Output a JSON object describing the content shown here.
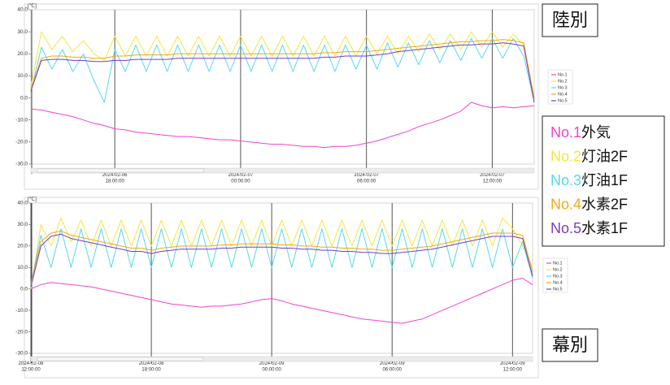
{
  "chart_data": [
    {
      "type": "line",
      "title": "陸別",
      "unit": "[℃]",
      "categories": [
        null,
        null,
        null,
        null,
        null,
        null,
        null,
        null,
        "2024-02-06 18:00:00",
        null,
        null,
        null,
        null,
        null,
        null,
        null,
        null,
        null,
        null,
        null,
        "2024-02-07 00:00:00",
        null,
        null,
        null,
        null,
        null,
        null,
        null,
        null,
        null,
        null,
        null,
        "2024-02-07 06:00:00",
        null,
        null,
        null,
        null,
        null,
        null,
        null,
        null,
        null,
        null,
        null,
        "2024-02-07 12:00:00",
        null,
        null,
        null,
        null
      ],
      "ylim": [
        -30,
        40
      ],
      "yticks": [
        {
          "value": 40,
          "label": "40.0"
        },
        {
          "value": 30,
          "label": "30.0"
        },
        {
          "value": 20,
          "label": "20.0"
        },
        {
          "value": 10,
          "label": "10.0"
        },
        {
          "value": 0,
          "label": "0.0"
        },
        {
          "value": -10,
          "label": "-10.0"
        },
        {
          "value": -20,
          "label": "-20.0"
        },
        {
          "value": -30,
          "label": "-30.0"
        }
      ],
      "series": [
        {
          "name": "No.1",
          "label": "外気",
          "color": "#ee44cc",
          "values": [
            -5,
            -5.5,
            -6.5,
            -7.5,
            -8.5,
            -10,
            -11.5,
            -12.5,
            -14,
            -14.5,
            -15.5,
            -16,
            -16.5,
            -17,
            -17.5,
            -17.5,
            -18,
            -18.5,
            -19,
            -19,
            -19.5,
            -20,
            -20.5,
            -21,
            -21,
            -21.5,
            -22,
            -22,
            -22.5,
            -22,
            -22,
            -21.5,
            -20.5,
            -19.5,
            -18,
            -16.5,
            -15,
            -13,
            -11.5,
            -10,
            -8,
            -6,
            -2,
            -3.5,
            -4.5,
            -4,
            -4.5,
            -4,
            -3.5
          ]
        },
        {
          "name": "No.2",
          "label": "灯油2F",
          "color": "#f2e640",
          "values": [
            5,
            30,
            22,
            28,
            21,
            26,
            20,
            17,
            28,
            19,
            28,
            19,
            28,
            19,
            28,
            19,
            28,
            19,
            28,
            19,
            28,
            19,
            28,
            19,
            28,
            19,
            28,
            19,
            28,
            19,
            28,
            19,
            28,
            20,
            28,
            20,
            28,
            21,
            29,
            22,
            29,
            22,
            30,
            23,
            30,
            23,
            29,
            24,
            0
          ]
        },
        {
          "name": "No.3",
          "label": "灯油1F",
          "color": "#55d8f0",
          "values": [
            3,
            23,
            13,
            22,
            12,
            20,
            8,
            -2,
            22,
            12,
            24,
            12,
            24,
            12,
            24,
            12,
            24,
            12,
            24,
            12,
            24,
            12,
            24,
            12,
            24,
            12,
            24,
            12,
            24,
            12,
            24,
            13,
            24,
            13,
            25,
            14,
            25,
            15,
            26,
            16,
            26,
            17,
            27,
            18,
            27,
            18,
            27,
            19,
            -2
          ]
        },
        {
          "name": "No.4",
          "label": "水素2F",
          "color": "#f0a818",
          "values": [
            4,
            18,
            19,
            19,
            18.5,
            18.5,
            18,
            18,
            19,
            19,
            19.5,
            19.5,
            19.5,
            19.5,
            20,
            20,
            20,
            20,
            20,
            20,
            20,
            20,
            20,
            20,
            20,
            20,
            20,
            20,
            20.5,
            20.5,
            21,
            21,
            21,
            21.5,
            22,
            22.5,
            23,
            23.5,
            24,
            24.5,
            25,
            25.5,
            25.5,
            26,
            26,
            26.5,
            26,
            25,
            0
          ]
        },
        {
          "name": "No.5",
          "label": "水素1F",
          "color": "#7a3cc0",
          "values": [
            3,
            17,
            17.5,
            17.5,
            17,
            17,
            16.5,
            16.5,
            17,
            17,
            17.5,
            17.5,
            17.5,
            17.5,
            18,
            18,
            18,
            18,
            18,
            18,
            18,
            18,
            18,
            18,
            18,
            18,
            18,
            18,
            18.5,
            18.5,
            19,
            19,
            19,
            19.5,
            20,
            21,
            21.5,
            22,
            22.5,
            23,
            23.5,
            24,
            24,
            24.5,
            24.5,
            25,
            24.5,
            23.5,
            -2
          ]
        }
      ]
    },
    {
      "type": "line",
      "title": "幕別",
      "unit": "[℃]",
      "categories": [
        "2024-02-08 12:00:00",
        null,
        null,
        null,
        null,
        null,
        null,
        null,
        null,
        null,
        null,
        null,
        "2024-02-08 18:00:00",
        null,
        null,
        null,
        null,
        null,
        null,
        null,
        null,
        null,
        null,
        null,
        "2024-02-09 00:00:00",
        null,
        null,
        null,
        null,
        null,
        null,
        null,
        null,
        null,
        null,
        null,
        "2024-02-09 06:00:00",
        null,
        null,
        null,
        null,
        null,
        null,
        null,
        null,
        null,
        null,
        null,
        "2024-02-09 12:00:00",
        null,
        null
      ],
      "ylim": [
        -30,
        40
      ],
      "yticks": [
        {
          "value": 40,
          "label": "40.0"
        },
        {
          "value": 30,
          "label": "30.0"
        },
        {
          "value": 20,
          "label": "20.0"
        },
        {
          "value": 10,
          "label": "10.0"
        },
        {
          "value": 0,
          "label": "0.0"
        },
        {
          "value": -10,
          "label": "-10.0"
        },
        {
          "value": -20,
          "label": "-20.0"
        },
        {
          "value": -30,
          "label": "-30.0"
        }
      ],
      "series": [
        {
          "name": "No.1",
          "color": "#ee44cc",
          "values": [
            0,
            2,
            3,
            2.5,
            2,
            1.5,
            1,
            0,
            -1,
            -2,
            -3,
            -4,
            -5,
            -6,
            -7,
            -7.5,
            -8,
            -8.5,
            -8,
            -8,
            -7.5,
            -7,
            -6,
            -5,
            -4.5,
            -5.5,
            -7,
            -8,
            -9,
            -10,
            -11,
            -12,
            -13,
            -14,
            -14.5,
            -15,
            -15.5,
            -16,
            -15,
            -14,
            -12,
            -10,
            -8,
            -6,
            -4,
            -2,
            0,
            2,
            4,
            5,
            2
          ]
        },
        {
          "name": "No.2",
          "color": "#f2e640",
          "values": [
            0,
            30,
            20,
            33,
            22,
            32,
            20,
            32,
            20,
            32,
            20,
            32,
            20,
            32,
            20,
            32,
            20,
            32,
            20,
            32,
            20,
            32,
            20,
            32,
            20,
            32,
            20,
            32,
            20,
            32,
            20,
            32,
            20,
            32,
            20,
            32,
            20,
            32,
            20,
            32,
            20,
            32,
            20,
            32,
            20,
            32,
            20,
            33,
            28,
            20,
            10
          ]
        },
        {
          "name": "No.3",
          "color": "#55d8f0",
          "values": [
            2,
            25,
            10,
            28,
            10,
            28,
            10,
            28,
            10,
            28,
            10,
            28,
            10,
            28,
            10,
            28,
            10,
            28,
            10,
            28,
            10,
            28,
            10,
            28,
            10,
            28,
            10,
            28,
            10,
            28,
            10,
            28,
            10,
            28,
            10,
            28,
            10,
            28,
            10,
            28,
            10,
            28,
            10,
            28,
            10,
            28,
            10,
            28,
            10,
            22,
            5
          ]
        },
        {
          "name": "No.4",
          "color": "#f0a818",
          "values": [
            2,
            22,
            26,
            27,
            25,
            24,
            23,
            22,
            21,
            20,
            19,
            19,
            18,
            19,
            19.5,
            20,
            20,
            20,
            20,
            20.5,
            20.5,
            21,
            21,
            21,
            21,
            20.5,
            20.5,
            20,
            20,
            19.5,
            19.5,
            19,
            19,
            18.5,
            18.5,
            18,
            18,
            18.5,
            19,
            19.5,
            20,
            21,
            22,
            23,
            24,
            25,
            26,
            26,
            26,
            25,
            8
          ]
        },
        {
          "name": "No.5",
          "color": "#7a3cc0",
          "values": [
            1,
            20,
            24.5,
            25.5,
            23.5,
            22.5,
            21.5,
            20.5,
            19.5,
            18.5,
            17.5,
            17.5,
            16.5,
            17.5,
            18,
            18.5,
            18.5,
            18.5,
            18.5,
            19,
            19,
            19.5,
            19.5,
            19.5,
            19.5,
            19,
            19,
            18.5,
            18.5,
            18,
            18,
            17.5,
            17.5,
            17,
            17,
            16.5,
            16.5,
            17,
            17.5,
            18,
            18.5,
            19.5,
            20.5,
            21.5,
            22.5,
            23.5,
            24.5,
            24.5,
            24.5,
            23.5,
            6
          ]
        }
      ]
    }
  ]
}
